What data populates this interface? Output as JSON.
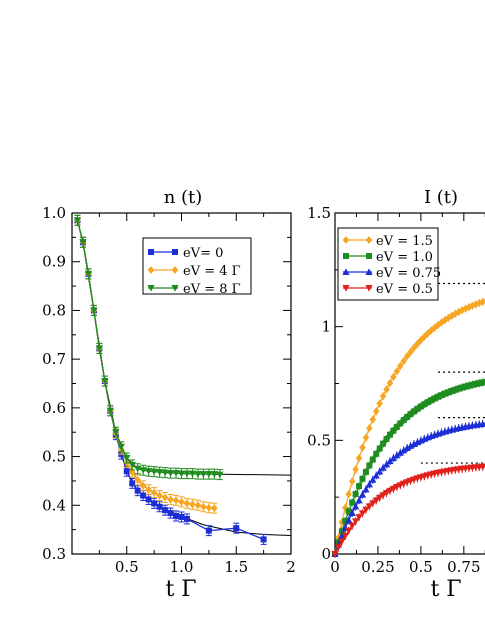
{
  "chart_data": [
    {
      "type": "line",
      "title": "n (t)",
      "xlabel": "t Γ",
      "ylabel": "",
      "xlim": [
        0,
        2
      ],
      "ylim": [
        0.3,
        1.0
      ],
      "xticks": [
        0.5,
        1.0,
        1.5,
        2
      ],
      "xtick_labels": [
        "0.5",
        "1.0",
        "1.5",
        "2"
      ],
      "yticks": [
        0.3,
        0.4,
        0.5,
        0.6,
        0.7,
        0.8,
        0.9,
        1.0
      ],
      "ytick_labels": [
        "0.3",
        "0.4",
        "0.5",
        "0.6",
        "0.7",
        "0.8",
        "0.9",
        "1.0"
      ],
      "legend_position": "top-right",
      "grid": false,
      "series": [
        {
          "name": "eV= 0",
          "color": "#1c2fd6",
          "marker": "square",
          "x": [
            0.05,
            0.1,
            0.15,
            0.2,
            0.25,
            0.3,
            0.35,
            0.4,
            0.45,
            0.5,
            0.55,
            0.6,
            0.65,
            0.7,
            0.75,
            0.8,
            0.85,
            0.9,
            0.95,
            1.0,
            1.05,
            1.25,
            1.5,
            1.75
          ],
          "y": [
            0.985,
            0.94,
            0.875,
            0.8,
            0.722,
            0.655,
            0.594,
            0.545,
            0.505,
            0.47,
            0.445,
            0.43,
            0.42,
            0.412,
            0.404,
            0.397,
            0.39,
            0.384,
            0.378,
            0.376,
            0.372,
            0.348,
            0.353,
            0.33
          ],
          "fit_x": [
            0.05,
            0.1,
            0.2,
            0.3,
            0.4,
            0.5,
            0.6,
            0.7,
            0.8,
            1.0,
            1.2,
            1.5,
            1.75,
            2.0
          ],
          "fit_y": [
            0.985,
            0.94,
            0.8,
            0.655,
            0.545,
            0.47,
            0.43,
            0.412,
            0.398,
            0.377,
            0.36,
            0.345,
            0.34,
            0.338
          ]
        },
        {
          "name": "eV = 4 Γ",
          "color": "#f5a623",
          "marker": "diamond",
          "x": [
            0.05,
            0.1,
            0.15,
            0.2,
            0.25,
            0.3,
            0.35,
            0.4,
            0.45,
            0.5,
            0.55,
            0.6,
            0.65,
            0.7,
            0.75,
            0.8,
            0.85,
            0.9,
            0.95,
            1.0,
            1.05,
            1.1,
            1.15,
            1.2,
            1.25,
            1.3
          ],
          "y": [
            0.985,
            0.94,
            0.875,
            0.8,
            0.722,
            0.655,
            0.594,
            0.548,
            0.515,
            0.488,
            0.468,
            0.452,
            0.44,
            0.432,
            0.426,
            0.42,
            0.416,
            0.412,
            0.41,
            0.407,
            0.404,
            0.402,
            0.4,
            0.397,
            0.395,
            0.394
          ],
          "fit_x": [
            0.05,
            0.1,
            0.2,
            0.3,
            0.4,
            0.5,
            0.6,
            0.7,
            0.8,
            0.9,
            1.0,
            1.1,
            1.3
          ],
          "fit_y": [
            0.985,
            0.94,
            0.8,
            0.655,
            0.548,
            0.488,
            0.452,
            0.432,
            0.42,
            0.412,
            0.407,
            0.402,
            0.394
          ]
        },
        {
          "name": "eV = 8 Γ",
          "color": "#1e8c1e",
          "marker": "triangle-down",
          "x": [
            0.05,
            0.1,
            0.15,
            0.2,
            0.25,
            0.3,
            0.35,
            0.4,
            0.45,
            0.5,
            0.55,
            0.6,
            0.65,
            0.7,
            0.75,
            0.8,
            0.85,
            0.9,
            0.95,
            1.0,
            1.05,
            1.1,
            1.15,
            1.2,
            1.25,
            1.3,
            1.35
          ],
          "y": [
            0.985,
            0.94,
            0.875,
            0.8,
            0.722,
            0.655,
            0.594,
            0.55,
            0.52,
            0.497,
            0.483,
            0.475,
            0.472,
            0.47,
            0.469,
            0.468,
            0.467,
            0.466,
            0.466,
            0.465,
            0.465,
            0.465,
            0.464,
            0.464,
            0.464,
            0.464,
            0.463
          ],
          "fit_x": [
            0.05,
            0.1,
            0.2,
            0.3,
            0.4,
            0.5,
            0.6,
            0.7,
            0.8,
            1.0,
            1.3,
            1.6,
            2.0
          ],
          "fit_y": [
            0.985,
            0.94,
            0.8,
            0.655,
            0.55,
            0.497,
            0.475,
            0.47,
            0.468,
            0.465,
            0.464,
            0.463,
            0.462
          ]
        }
      ]
    },
    {
      "type": "line",
      "title": "I (t)",
      "xlabel": "t Γ",
      "ylabel": "",
      "xlim": [
        0,
        0.9
      ],
      "ylim": [
        0,
        1.5
      ],
      "xticks": [
        0,
        0.25,
        0.5,
        0.75
      ],
      "xtick_labels": [
        "0",
        "0.25",
        "0.5",
        "0.75"
      ],
      "yticks": [
        0,
        0.5,
        1,
        1.5
      ],
      "ytick_labels": [
        "0",
        "0.5",
        "1",
        "1.5"
      ],
      "legend_position": "top-left",
      "grid": false,
      "series": [
        {
          "name": "eV = 1.5",
          "color": "#f5a623",
          "marker": "diamond",
          "saturation": 1.19,
          "saturation_xrange": [
            0.6,
            0.9
          ],
          "tau": 0.32,
          "x_start": 0.0,
          "x_end": 0.9,
          "x_step": 0.02
        },
        {
          "name": "eV = 1.0",
          "color": "#1e8c1e",
          "marker": "square",
          "saturation": 0.8,
          "saturation_xrange": [
            0.6,
            0.9
          ],
          "tau": 0.3,
          "x_start": 0.0,
          "x_end": 0.9,
          "x_step": 0.02
        },
        {
          "name": "eV = 0.75",
          "color": "#1c2fd6",
          "marker": "triangle-up",
          "saturation": 0.6,
          "saturation_xrange": [
            0.6,
            0.9
          ],
          "tau": 0.28,
          "x_start": 0.0,
          "x_end": 0.9,
          "x_step": 0.02
        },
        {
          "name": "eV = 0.5",
          "color": "#e0211a",
          "marker": "triangle-down",
          "saturation": 0.4,
          "saturation_xrange": [
            0.5,
            0.9
          ],
          "tau": 0.27,
          "x_start": 0.0,
          "x_end": 0.9,
          "x_step": 0.02
        }
      ]
    }
  ]
}
